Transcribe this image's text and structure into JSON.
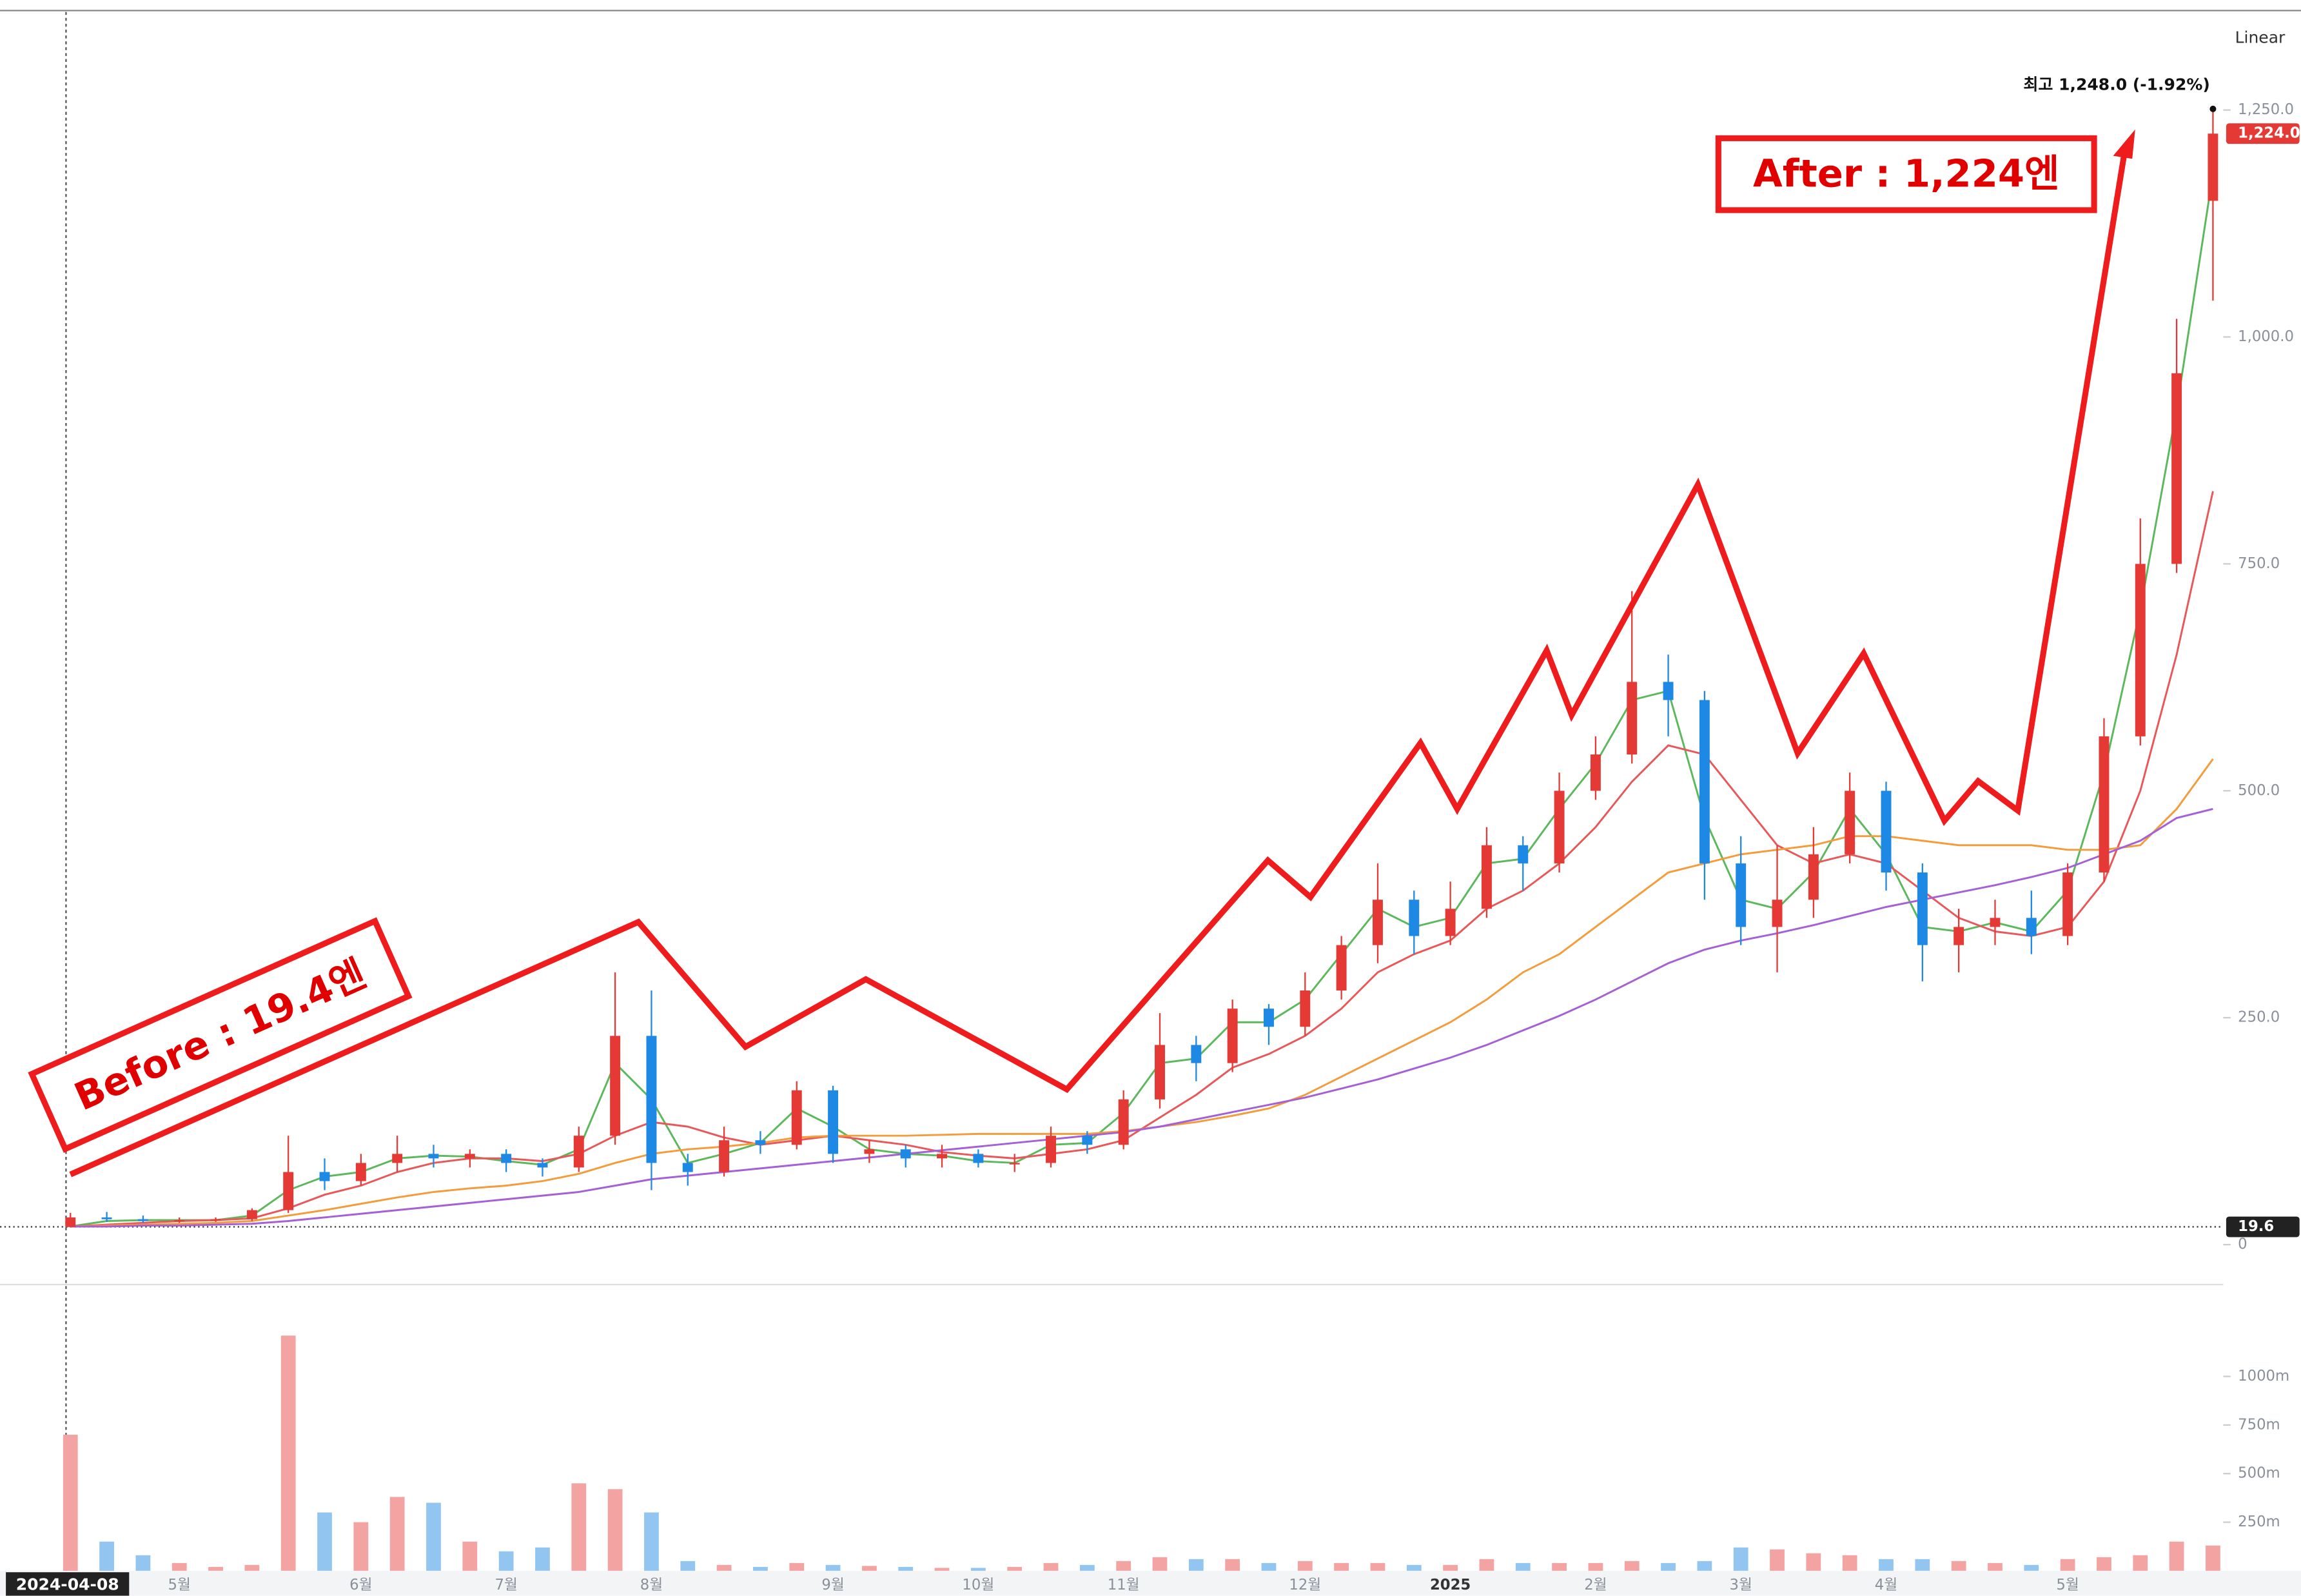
{
  "chart_data": {
    "type": "candlestick",
    "scale_label": "Linear",
    "categories": [
      "2024-04-08",
      null,
      null,
      "5월",
      null,
      null,
      null,
      null,
      "6월",
      null,
      null,
      null,
      "7월",
      null,
      null,
      null,
      "8월",
      null,
      null,
      null,
      null,
      "9월",
      null,
      null,
      null,
      "10월",
      null,
      null,
      null,
      "11월",
      null,
      null,
      null,
      null,
      "12월",
      null,
      null,
      null,
      "2025",
      null,
      null,
      null,
      "2월",
      null,
      null,
      null,
      "3월",
      null,
      null,
      null,
      "4월",
      null,
      null,
      null,
      null,
      "5월",
      null,
      null,
      null,
      null
    ],
    "open": [
      19.4,
      30,
      28,
      26,
      27,
      28,
      38,
      80,
      70,
      90,
      100,
      95,
      100,
      90,
      85,
      120,
      230,
      90,
      80,
      115,
      110,
      170,
      100,
      105,
      95,
      100,
      90,
      90,
      120,
      110,
      160,
      220,
      200,
      260,
      240,
      280,
      330,
      380,
      340,
      370,
      440,
      420,
      500,
      540,
      620,
      600,
      420,
      350,
      380,
      430,
      500,
      410,
      330,
      350,
      360,
      340,
      410,
      560,
      750,
      1150
    ],
    "high": [
      35,
      36,
      32,
      30,
      30,
      40,
      120,
      95,
      100,
      120,
      110,
      105,
      105,
      95,
      130,
      300,
      280,
      100,
      130,
      125,
      180,
      175,
      115,
      110,
      110,
      105,
      100,
      130,
      125,
      170,
      255,
      230,
      270,
      265,
      300,
      340,
      420,
      390,
      400,
      460,
      450,
      520,
      560,
      720,
      650,
      610,
      450,
      440,
      460,
      520,
      510,
      420,
      370,
      380,
      390,
      420,
      580,
      800,
      1020,
      1248
    ],
    "low": [
      19,
      25,
      24,
      24,
      25,
      26,
      35,
      60,
      65,
      80,
      85,
      85,
      80,
      75,
      80,
      110,
      60,
      65,
      75,
      100,
      105,
      90,
      90,
      85,
      85,
      85,
      80,
      85,
      100,
      105,
      150,
      180,
      190,
      220,
      230,
      270,
      310,
      320,
      330,
      360,
      390,
      410,
      490,
      530,
      560,
      380,
      330,
      300,
      360,
      420,
      390,
      290,
      300,
      330,
      320,
      330,
      400,
      550,
      740,
      1040
    ],
    "close": [
      30,
      28,
      26,
      27,
      28,
      38,
      80,
      70,
      90,
      100,
      95,
      100,
      90,
      85,
      120,
      230,
      90,
      80,
      115,
      110,
      170,
      100,
      105,
      95,
      100,
      90,
      90,
      120,
      110,
      160,
      220,
      200,
      260,
      240,
      280,
      330,
      380,
      340,
      370,
      440,
      420,
      500,
      540,
      620,
      600,
      420,
      350,
      380,
      430,
      500,
      410,
      330,
      350,
      360,
      340,
      410,
      560,
      750,
      960,
      1224
    ],
    "up_color": "#e53935",
    "down_color": "#1e88e5",
    "lines": [
      {
        "color": "#5cb85c",
        "values": [
          20,
          26,
          27,
          27,
          27,
          32,
          60,
          75,
          80,
          95,
          98,
          97,
          92,
          88,
          105,
          200,
          160,
          90,
          100,
          112,
          150,
          130,
          105,
          100,
          98,
          92,
          90,
          110,
          112,
          145,
          200,
          205,
          245,
          245,
          270,
          320,
          370,
          350,
          360,
          420,
          425,
          480,
          530,
          600,
          610,
          470,
          380,
          370,
          410,
          480,
          430,
          350,
          345,
          355,
          345,
          390,
          520,
          700,
          920,
          1180
        ]
      },
      {
        "color": "#e8585a",
        "values": [
          20,
          22,
          24,
          26,
          27,
          29,
          40,
          55,
          65,
          80,
          90,
          95,
          95,
          92,
          100,
          120,
          135,
          130,
          118,
          110,
          115,
          120,
          115,
          110,
          102,
          98,
          95,
          100,
          105,
          115,
          140,
          165,
          195,
          210,
          230,
          260,
          300,
          320,
          335,
          370,
          390,
          420,
          460,
          510,
          550,
          540,
          490,
          440,
          420,
          430,
          420,
          390,
          360,
          345,
          340,
          350,
          400,
          500,
          650,
          830
        ]
      },
      {
        "color": "#f39c3c",
        "values": [
          20,
          21,
          22,
          23,
          24,
          26,
          32,
          38,
          45,
          52,
          58,
          62,
          65,
          70,
          78,
          90,
          100,
          105,
          108,
          112,
          118,
          120,
          120,
          120,
          121,
          122,
          122,
          122,
          122,
          125,
          130,
          135,
          142,
          150,
          165,
          185,
          205,
          225,
          245,
          270,
          300,
          320,
          350,
          380,
          410,
          420,
          430,
          435,
          440,
          450,
          450,
          445,
          440,
          440,
          440,
          435,
          435,
          440,
          480,
          535
        ]
      },
      {
        "color": "#a560d6",
        "values": [
          20,
          20,
          21,
          21,
          22,
          23,
          26,
          30,
          34,
          38,
          42,
          46,
          50,
          54,
          58,
          65,
          72,
          76,
          80,
          84,
          88,
          92,
          96,
          100,
          104,
          108,
          112,
          116,
          120,
          124,
          130,
          138,
          146,
          154,
          162,
          172,
          182,
          194,
          206,
          220,
          236,
          252,
          270,
          290,
          310,
          325,
          335,
          343,
          352,
          362,
          372,
          380,
          388,
          396,
          405,
          415,
          430,
          445,
          470,
          480
        ]
      }
    ],
    "ylim": [
      -44,
      1358
    ],
    "yticks": [
      0,
      {
        "value": 250,
        "label": "250.0"
      },
      {
        "value": 500,
        "label": "500.0"
      },
      {
        "value": 750,
        "label": "750.0"
      },
      {
        "value": 1000,
        "label": "1,000.0"
      },
      {
        "value": 1250,
        "label": "1,250.0"
      }
    ],
    "last_price": {
      "value": 1224,
      "label": "1,224.0"
    },
    "base_line": 19.6,
    "high_label": "최고 1,248.0 (-1.92%)",
    "annotations": {
      "before": "Before : 19.4엔",
      "after": "After : 1,224엔"
    },
    "volume": {
      "values": [
        700,
        150,
        80,
        40,
        20,
        30,
        1210,
        300,
        250,
        380,
        350,
        150,
        100,
        120,
        450,
        420,
        300,
        50,
        30,
        20,
        40,
        30,
        25,
        20,
        15,
        15,
        20,
        40,
        30,
        50,
        70,
        60,
        60,
        40,
        50,
        40,
        40,
        30,
        30,
        60,
        40,
        40,
        40,
        50,
        40,
        50,
        120,
        110,
        90,
        80,
        60,
        60,
        50,
        40,
        30,
        60,
        70,
        80,
        150,
        130
      ],
      "ylim": [
        0,
        1450
      ],
      "yticks": [
        {
          "value": 250,
          "label": "250m"
        },
        {
          "value": 500,
          "label": "500m"
        },
        {
          "value": 750,
          "label": "750m"
        },
        {
          "value": 1000,
          "label": "1000m"
        }
      ]
    }
  }
}
